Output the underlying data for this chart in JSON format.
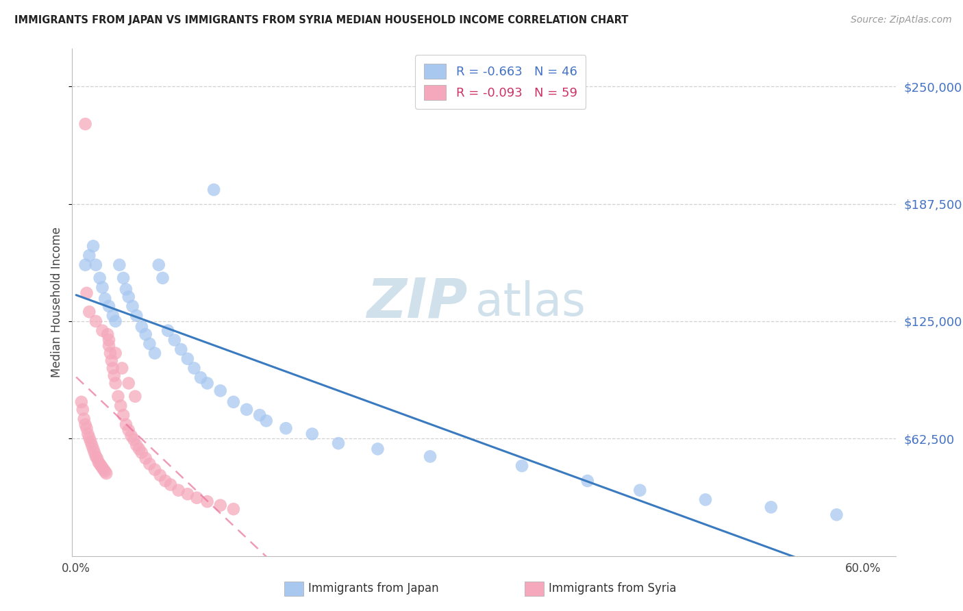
{
  "title": "IMMIGRANTS FROM JAPAN VS IMMIGRANTS FROM SYRIA MEDIAN HOUSEHOLD INCOME CORRELATION CHART",
  "source": "Source: ZipAtlas.com",
  "ylabel": "Median Household Income",
  "ytick_labels": [
    "$250,000",
    "$187,500",
    "$125,000",
    "$62,500"
  ],
  "ytick_values": [
    250000,
    187500,
    125000,
    62500
  ],
  "ymin": 0,
  "ymax": 270000,
  "xmin": -0.003,
  "xmax": 0.625,
  "japan_color": "#a8c8f0",
  "japan_line_color": "#3a7abf",
  "syria_color": "#f5a8bc",
  "syria_line_color": "#e8709a",
  "japan_R": -0.663,
  "japan_N": 46,
  "syria_R": -0.093,
  "syria_N": 59,
  "background_color": "#ffffff",
  "grid_color": "#cccccc",
  "legend_text_color_japan": "#4472c4",
  "legend_text_color_syria": "#cc3366",
  "watermark_zip": "ZIP",
  "watermark_atlas": "atlas",
  "watermark_color_zip": "#c5d8ee",
  "watermark_color_atlas": "#c5d8ee",
  "japan_x": [
    0.007,
    0.01,
    0.013,
    0.015,
    0.018,
    0.02,
    0.022,
    0.025,
    0.028,
    0.03,
    0.033,
    0.036,
    0.038,
    0.04,
    0.043,
    0.046,
    0.05,
    0.053,
    0.056,
    0.06,
    0.063,
    0.066,
    0.07,
    0.075,
    0.08,
    0.085,
    0.09,
    0.095,
    0.1,
    0.11,
    0.12,
    0.13,
    0.145,
    0.16,
    0.18,
    0.2,
    0.23,
    0.27,
    0.34,
    0.39,
    0.43,
    0.48,
    0.53,
    0.58,
    0.14,
    0.105
  ],
  "japan_y": [
    155000,
    160000,
    165000,
    155000,
    148000,
    143000,
    137000,
    133000,
    128000,
    125000,
    155000,
    148000,
    142000,
    138000,
    133000,
    128000,
    122000,
    118000,
    113000,
    108000,
    155000,
    148000,
    120000,
    115000,
    110000,
    105000,
    100000,
    95000,
    92000,
    88000,
    82000,
    78000,
    72000,
    68000,
    65000,
    60000,
    57000,
    53000,
    48000,
    40000,
    35000,
    30000,
    26000,
    22000,
    75000,
    195000
  ],
  "syria_x": [
    0.004,
    0.005,
    0.006,
    0.007,
    0.008,
    0.009,
    0.01,
    0.011,
    0.012,
    0.013,
    0.014,
    0.015,
    0.016,
    0.017,
    0.018,
    0.019,
    0.02,
    0.021,
    0.022,
    0.023,
    0.024,
    0.025,
    0.026,
    0.027,
    0.028,
    0.029,
    0.03,
    0.032,
    0.034,
    0.036,
    0.038,
    0.04,
    0.042,
    0.044,
    0.046,
    0.048,
    0.05,
    0.053,
    0.056,
    0.06,
    0.064,
    0.068,
    0.072,
    0.078,
    0.085,
    0.092,
    0.1,
    0.11,
    0.12,
    0.008,
    0.01,
    0.015,
    0.02,
    0.025,
    0.03,
    0.035,
    0.04,
    0.045,
    0.007
  ],
  "syria_y": [
    82000,
    78000,
    73000,
    70000,
    68000,
    65000,
    63000,
    61000,
    59000,
    57000,
    55000,
    53000,
    52000,
    50000,
    49000,
    48000,
    47000,
    46000,
    45000,
    44000,
    118000,
    112000,
    108000,
    104000,
    100000,
    96000,
    92000,
    85000,
    80000,
    75000,
    70000,
    67000,
    64000,
    62000,
    59000,
    57000,
    55000,
    52000,
    49000,
    46000,
    43000,
    40000,
    38000,
    35000,
    33000,
    31000,
    29000,
    27000,
    25000,
    140000,
    130000,
    125000,
    120000,
    115000,
    108000,
    100000,
    92000,
    85000,
    230000
  ]
}
